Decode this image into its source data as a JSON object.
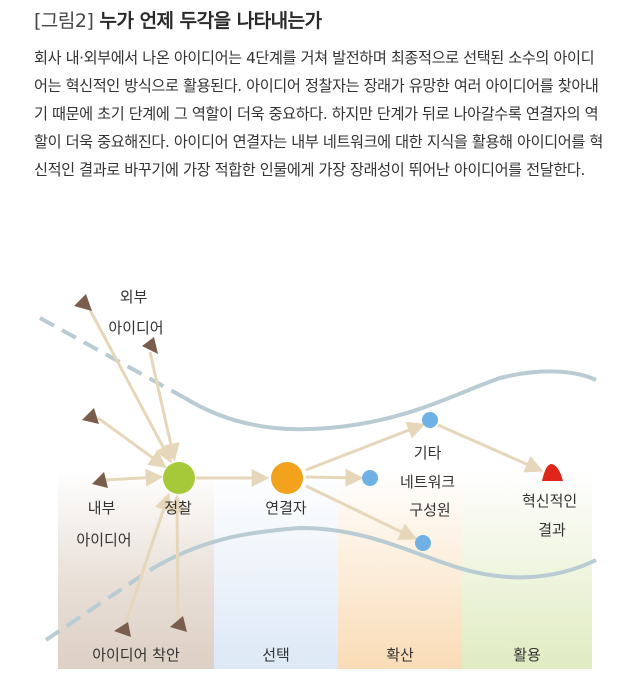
{
  "figure": {
    "tag": "[그림2]",
    "title": "누가 언제 두각을 나타내는가",
    "description": "회사 내·외부에서 나온 아이디어는 4단계를 거쳐 발전하며 최종적으로 선택된 소수의 아이디어는 혁신적인 방식으로 활용된다. 아이디어 정찰자는 장래가 유망한 여러 아이디어를 찾아내기 때문에 초기 단계에 그 역할이 더욱 중요하다. 하지만 단계가 뒤로 나아갈수록 연결자의 역할이 더욱 중요해진다. 아이디어 연결자는 내부 네트워크에 대한 지식을 활용해 아이디어를 혁신적인 결과로 바꾸기에 가장 적합한 인물에게 가장 장래성이 뛰어난 아이디어를 전달한다."
  },
  "diagram": {
    "external_ideas": [
      "외부",
      "아이디어"
    ],
    "internal_ideas": [
      "내부",
      "아이디어"
    ],
    "scout": "정찰",
    "connector": "연결자",
    "other_network": [
      "기타",
      "네트워크",
      "구성원"
    ],
    "result": [
      "혁신적인",
      "결과"
    ],
    "stages": [
      "아이디어 착안",
      "선택",
      "확산",
      "활용"
    ],
    "colors": {
      "idea_triangle": "#7a5e4d",
      "scout_node": "#a6c93a",
      "connector_node": "#f2a21c",
      "network_node": "#6fb1e4",
      "result_node": "#e0251b",
      "arrow": "#e9dcc3",
      "funnel_line": "#b9cbd3",
      "stage_ideation": "#e7ddd4",
      "stage_selection": "#e6eef8",
      "stage_diffusion": "#fbe3c4",
      "stage_use": "#e6efcb"
    }
  }
}
